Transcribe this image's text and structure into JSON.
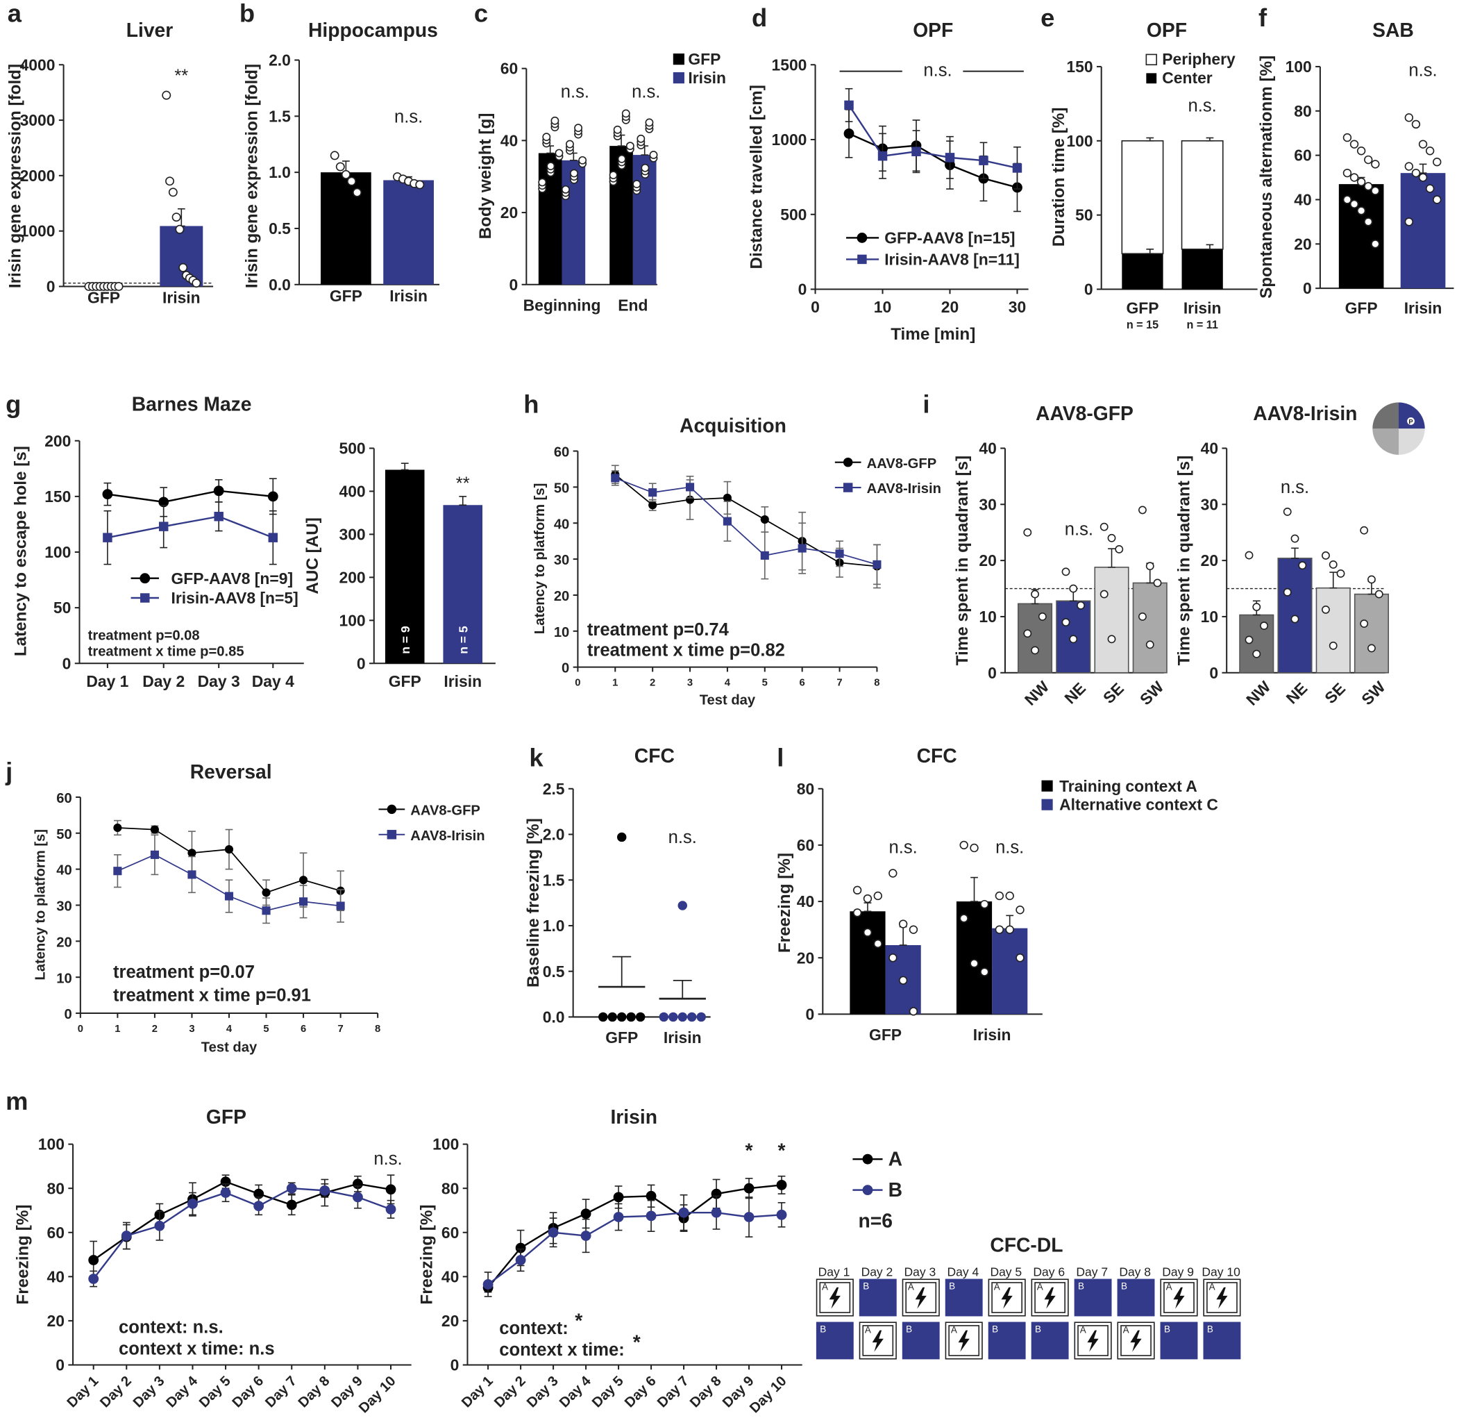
{
  "colors": {
    "black": "#000000",
    "blue": "#333a8a",
    "dark_gray": "#707070",
    "light_gray": "#dcdcdc",
    "mid_gray": "#a9a9a9"
  },
  "chart_data": [
    {
      "id": "a",
      "type": "bar",
      "panel": "a",
      "title": "Liver",
      "ylabel": "Irisin gene expression [fold]",
      "ylim": [
        0,
        4000
      ],
      "yticks": [
        "0",
        "1000",
        "2000",
        "3000",
        "4000"
      ],
      "categories": [
        "GFP",
        "Irisin"
      ],
      "values": [
        1,
        1090
      ],
      "errors": [
        0,
        310
      ],
      "points": [
        [
          -15,
          -5,
          -10,
          -12,
          -8,
          -3,
          -6,
          -9,
          -14
        ],
        [
          3450,
          1900,
          1700,
          1250,
          1030,
          340,
          200,
          150,
          110,
          60
        ]
      ],
      "signif": [
        "",
        "**"
      ],
      "dotted_ref": 1
    },
    {
      "id": "b",
      "type": "bar",
      "panel": "b",
      "title": "Hippocampus",
      "ylabel": "Irisin gene expression [fold]",
      "ylim": [
        0,
        2
      ],
      "yticks": [
        "0.0",
        "0.5",
        "1.0",
        "1.5",
        "2.0"
      ],
      "categories": [
        "GFP",
        "Irisin"
      ],
      "values": [
        1.0,
        0.93
      ],
      "errors": [
        0.1,
        0.03
      ],
      "points": [
        [
          1.15,
          1.05,
          0.98,
          0.92,
          0.82
        ],
        [
          0.96,
          0.94,
          0.92,
          0.9,
          0.89
        ]
      ],
      "signif": [
        "",
        "n.s."
      ]
    },
    {
      "id": "c",
      "type": "bar",
      "panel": "c",
      "ylabel": "Body weight [g]",
      "ylim": [
        0,
        60
      ],
      "yticks": [
        "0",
        "20",
        "40",
        "60"
      ],
      "categories": [
        "Beginning",
        "End"
      ],
      "series": [
        {
          "name": "GFP",
          "values": [
            36.5,
            38.5
          ],
          "errors": [
            2,
            3
          ]
        },
        {
          "name": "Irisin",
          "values": [
            34.5,
            36
          ],
          "errors": [
            2,
            2.5
          ]
        }
      ],
      "signif": [
        "n.s.",
        "n.s."
      ]
    },
    {
      "id": "d",
      "type": "line",
      "panel": "d",
      "title": "OPF",
      "xlabel": "Time [min]",
      "ylabel": "Distance travelled [cm]",
      "xlim": [
        0,
        30
      ],
      "ylim": [
        0,
        1500
      ],
      "xticks": [
        "0",
        "10",
        "20",
        "30"
      ],
      "yticks": [
        "0",
        "500",
        "1000",
        "1500"
      ],
      "x": [
        5,
        10,
        15,
        20,
        25,
        30
      ],
      "series": [
        {
          "name": "GFP-AAV8 [n=15]",
          "values": [
            1040,
            940,
            960,
            830,
            740,
            680
          ],
          "errors": [
            160,
            150,
            170,
            160,
            150,
            160
          ]
        },
        {
          "name": "Irisin-AAV8 [n=11]",
          "values": [
            1230,
            890,
            920,
            880,
            860,
            810
          ],
          "errors": [
            110,
            150,
            140,
            140,
            120,
            140
          ]
        }
      ],
      "annotation": "n.s."
    },
    {
      "id": "e",
      "type": "bar",
      "panel": "e",
      "title": "OPF",
      "ylabel": "Duration time [%]",
      "ylim": [
        0,
        150
      ],
      "yticks": [
        "0",
        "50",
        "100",
        "150"
      ],
      "categories": [
        "GFP",
        "Irisin"
      ],
      "n_labels": [
        "n = 15",
        "n = 11"
      ],
      "series": [
        {
          "name": "Periphery",
          "values": [
            76,
            73
          ]
        },
        {
          "name": "Center",
          "values": [
            24,
            27
          ]
        }
      ],
      "signif": [
        "",
        "n.s."
      ]
    },
    {
      "id": "f",
      "type": "bar",
      "panel": "f",
      "title": "SAB",
      "ylabel": "Spontaneous alternationm [%]",
      "ylim": [
        0,
        100
      ],
      "yticks": [
        "0",
        "20",
        "40",
        "60",
        "80",
        "100"
      ],
      "categories": [
        "GFP",
        "Irisin"
      ],
      "values": [
        47,
        52
      ],
      "errors": [
        3,
        4
      ],
      "signif": [
        "",
        "n.s."
      ]
    },
    {
      "id": "g1",
      "type": "line",
      "panel": "g",
      "title": "Barnes Maze",
      "ylabel": "Latency to escape hole [s]",
      "ylim": [
        0,
        200
      ],
      "yticks": [
        "0",
        "50",
        "100",
        "150",
        "200"
      ],
      "categories": [
        "Day 1",
        "Day 2",
        "Day 3",
        "Day 4"
      ],
      "series": [
        {
          "name": "GFP-AAV8 [n=9]",
          "values": [
            152,
            145,
            155,
            150
          ],
          "errors": [
            10,
            13,
            10,
            16
          ]
        },
        {
          "name": "Irisin-AAV8 [n=5]",
          "values": [
            113,
            123,
            132,
            113
          ],
          "errors": [
            24,
            19,
            13,
            24
          ]
        }
      ],
      "annotations": [
        "treatment p=0.08",
        "treatment x time p=0.85"
      ]
    },
    {
      "id": "g2",
      "type": "bar",
      "panel": "g",
      "ylabel": "AUC [AU]",
      "ylim": [
        0,
        500
      ],
      "yticks": [
        "0",
        "100",
        "200",
        "300",
        "400",
        "500"
      ],
      "categories": [
        "GFP",
        "Irisin"
      ],
      "values": [
        450,
        368
      ],
      "errors": [
        15,
        20
      ],
      "n_labels": [
        "n = 9",
        "n = 5"
      ],
      "signif": [
        "",
        "**"
      ]
    },
    {
      "id": "h",
      "type": "line",
      "panel": "h",
      "title": "Acquisition",
      "xlabel": "Test day",
      "ylabel": "Latency to platform [s]",
      "xlim": [
        0,
        8
      ],
      "ylim": [
        0,
        60
      ],
      "xticks": [
        "0",
        "1",
        "2",
        "3",
        "4",
        "5",
        "6",
        "7",
        "8"
      ],
      "yticks": [
        "0",
        "10",
        "20",
        "30",
        "40",
        "50",
        "60"
      ],
      "x": [
        1,
        2,
        3,
        4,
        5,
        6,
        7,
        8
      ],
      "series": [
        {
          "name": "AAV8-GFP",
          "values": [
            53.5,
            45,
            46.5,
            47,
            41,
            35,
            29,
            28
          ],
          "errors": [
            2.5,
            1.5,
            5.5,
            4.5,
            3.5,
            8,
            4,
            6
          ]
        },
        {
          "name": "AAV8-Irisin",
          "values": [
            52.5,
            48.5,
            50,
            40.5,
            31,
            33,
            31.5,
            28.5
          ],
          "errors": [
            2,
            2.5,
            3,
            5.5,
            6.5,
            7,
            3.5,
            5.5
          ]
        }
      ],
      "annotations": [
        "treatment p=0.74",
        "treatment x time p=0.82"
      ]
    },
    {
      "id": "i1",
      "type": "bar",
      "panel": "i",
      "title": "AAV8-GFP",
      "ylabel": "Time spent in quadrant [s]",
      "ylim": [
        0,
        40
      ],
      "yticks": [
        "0",
        "10",
        "20",
        "30",
        "40"
      ],
      "categories": [
        "NW",
        "NE",
        "SE",
        "SW"
      ],
      "values": [
        12.3,
        12.8,
        18.8,
        16
      ],
      "errors": [
        2.5,
        2,
        3.3,
        3.5
      ],
      "signif": [
        "",
        "n.s.",
        "",
        ""
      ],
      "dotted_ref": 15
    },
    {
      "id": "i2",
      "type": "bar",
      "panel": "i",
      "title": "AAV8-Irisin",
      "ylabel": "Time spent in quadrant [s]",
      "ylim": [
        0,
        40
      ],
      "yticks": [
        "0",
        "10",
        "20",
        "30",
        "40"
      ],
      "categories": [
        "NW",
        "NE",
        "SE",
        "SW"
      ],
      "values": [
        10.3,
        20.4,
        15.1,
        14
      ],
      "errors": [
        2.5,
        1.8,
        2.8,
        2.3
      ],
      "signif": [
        "",
        "n.s.",
        "",
        ""
      ],
      "dotted_ref": 15
    },
    {
      "id": "j",
      "type": "line",
      "panel": "j",
      "title": "Reversal",
      "xlabel": "Test day",
      "ylabel": "Latency to platform [s]",
      "xlim": [
        0,
        8
      ],
      "ylim": [
        0,
        60
      ],
      "xticks": [
        "0",
        "1",
        "2",
        "3",
        "4",
        "5",
        "6",
        "7",
        "8"
      ],
      "yticks": [
        "0",
        "10",
        "20",
        "30",
        "40",
        "50",
        "60"
      ],
      "x": [
        1,
        2,
        3,
        4,
        5,
        6,
        7
      ],
      "series": [
        {
          "name": "AAV8-GFP",
          "values": [
            51.5,
            51,
            44.5,
            45.5,
            33.5,
            37,
            34
          ],
          "errors": [
            2,
            1,
            6,
            5.5,
            3.5,
            7.5,
            5.5
          ]
        },
        {
          "name": "AAV8-Irisin",
          "values": [
            39.5,
            44,
            38.5,
            32.5,
            28.5,
            31,
            29.8
          ],
          "errors": [
            4.5,
            5.5,
            5,
            4.5,
            3.5,
            4.5,
            4.5
          ]
        }
      ],
      "annotations": [
        "treatment p=0.07",
        "treatment x time p=0.91"
      ]
    },
    {
      "id": "k",
      "type": "scatter",
      "panel": "k",
      "title": "CFC",
      "ylabel": "Baseline freezing [%]",
      "ylim": [
        0,
        2.5
      ],
      "yticks": [
        "0.0",
        "0.5",
        "1.0",
        "1.5",
        "2.0",
        "2.5"
      ],
      "categories": [
        "GFP",
        "Irisin"
      ],
      "means": [
        0.33,
        0.2
      ],
      "sems": [
        0.33,
        0.2
      ],
      "points": [
        [
          1.97,
          0,
          0,
          0,
          0,
          0
        ],
        [
          1.22,
          0,
          0,
          0,
          0,
          0
        ]
      ],
      "signif": [
        "",
        "n.s."
      ]
    },
    {
      "id": "l",
      "type": "bar",
      "panel": "l",
      "title": "CFC",
      "ylabel": "Freezing [%]",
      "ylim": [
        0,
        80
      ],
      "yticks": [
        "0",
        "20",
        "40",
        "60",
        "80"
      ],
      "categories": [
        "GFP",
        "Irisin"
      ],
      "series": [
        {
          "name": "Training context A",
          "values": [
            36.5,
            40
          ],
          "errors": [
            3,
            8.5
          ]
        },
        {
          "name": "Alternative context C",
          "values": [
            24.5,
            30.5
          ],
          "errors": [
            6.5,
            4.5
          ]
        }
      ],
      "signif": [
        "n.s.",
        "n.s."
      ]
    },
    {
      "id": "m1",
      "type": "line",
      "panel": "m",
      "title": "GFP",
      "ylabel": "Freezing [%]",
      "ylim": [
        0,
        100
      ],
      "yticks": [
        "0",
        "20",
        "40",
        "60",
        "80",
        "100"
      ],
      "categories": [
        "Day 1",
        "Day 2",
        "Day 3",
        "Day 4",
        "Day 5",
        "Day 6",
        "Day 7",
        "Day 8",
        "Day 9",
        "Day 10"
      ],
      "series": [
        {
          "name": "A",
          "values": [
            47.5,
            58,
            68,
            75,
            83,
            77.5,
            72.5,
            78,
            82,
            79.5
          ],
          "errors": [
            8.5,
            5.5,
            5,
            7.5,
            3,
            4,
            4.5,
            6,
            3.5,
            6.5
          ]
        },
        {
          "name": "B",
          "values": [
            39,
            58.5,
            63,
            73,
            78,
            72,
            80,
            79,
            76,
            70.5
          ],
          "errors": [
            3.5,
            6,
            6.5,
            5,
            4,
            4,
            2.5,
            3,
            5,
            4
          ]
        }
      ],
      "signif": [
        "",
        "",
        "",
        "",
        "",
        "",
        "",
        "",
        "",
        "n.s."
      ],
      "annotations": [
        "context: n.s.",
        "context x time: n.s"
      ]
    },
    {
      "id": "m2",
      "type": "line",
      "panel": "m",
      "title": "Irisin",
      "ylabel": "Freezing [%]",
      "ylim": [
        0,
        100
      ],
      "yticks": [
        "0",
        "20",
        "40",
        "60",
        "80",
        "100"
      ],
      "categories": [
        "Day 1",
        "Day 2",
        "Day 3",
        "Day 4",
        "Day 5",
        "Day 6",
        "Day 7",
        "Day 8",
        "Day 9",
        "Day 10"
      ],
      "series": [
        {
          "name": "A",
          "values": [
            35,
            53,
            62,
            68.5,
            76,
            76.5,
            66.5,
            77.5,
            80,
            81.5
          ],
          "errors": [
            2,
            8,
            7,
            6.5,
            5,
            5,
            6,
            6.5,
            4.5,
            4
          ]
        },
        {
          "name": "B",
          "values": [
            36.5,
            47.5,
            60,
            58.5,
            67,
            67.5,
            69,
            69,
            67,
            68
          ],
          "errors": [
            5.5,
            5,
            6.5,
            7.5,
            6,
            7,
            8,
            7.5,
            9,
            5.5
          ]
        }
      ],
      "signif": [
        "",
        "",
        "",
        "",
        "",
        "",
        "",
        "",
        "*",
        "*"
      ],
      "annotations": [
        "context: ",
        "context x time: "
      ],
      "annotation_marks": [
        "*",
        "*"
      ]
    }
  ],
  "panel_labels": [
    "a",
    "b",
    "c",
    "d",
    "e",
    "f",
    "g",
    "h",
    "i",
    "j",
    "k",
    "l",
    "m"
  ],
  "m_legend": {
    "items": [
      "A",
      "B"
    ],
    "n": "n=6"
  },
  "cfc_dl": {
    "title": "CFC-DL",
    "days": [
      "Day 1",
      "Day 2",
      "Day 3",
      "Day 4",
      "Day 5",
      "Day 6",
      "Day 7",
      "Day 8",
      "Day 9",
      "Day 10"
    ],
    "top_row": [
      "A",
      "B",
      "A",
      "B",
      "A",
      "A",
      "B",
      "B",
      "A",
      "A"
    ],
    "bottom_row": [
      "B",
      "A",
      "B",
      "A",
      "B",
      "B",
      "A",
      "A",
      "B",
      "B"
    ]
  },
  "icons": {
    "shock": "lightning-bolt-icon",
    "watermaze": "quadrant-pie-icon"
  },
  "pie_label": "P"
}
